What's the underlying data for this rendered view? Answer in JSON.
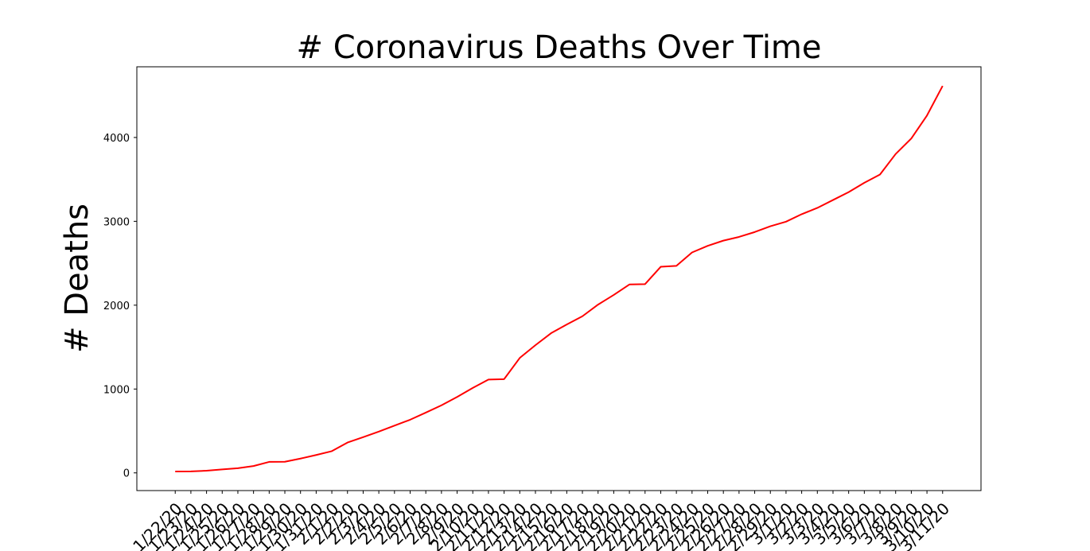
{
  "chart_data": {
    "type": "line",
    "title": "# Coronavirus Deaths Over Time",
    "xlabel": "",
    "ylabel": "# Deaths",
    "line_color": "#ff0000",
    "grid": false,
    "x": [
      "1/22/20",
      "1/23/20",
      "1/24/20",
      "1/25/20",
      "1/26/20",
      "1/27/20",
      "1/28/20",
      "1/29/20",
      "1/30/20",
      "1/31/20",
      "2/1/20",
      "2/2/20",
      "2/3/20",
      "2/4/20",
      "2/5/20",
      "2/6/20",
      "2/7/20",
      "2/8/20",
      "2/9/20",
      "2/10/20",
      "2/11/20",
      "2/12/20",
      "2/13/20",
      "2/14/20",
      "2/15/20",
      "2/16/20",
      "2/17/20",
      "2/18/20",
      "2/19/20",
      "2/20/20",
      "2/21/20",
      "2/22/20",
      "2/23/20",
      "2/24/20",
      "2/25/20",
      "2/26/20",
      "2/27/20",
      "2/28/20",
      "2/29/20",
      "3/1/20",
      "3/2/20",
      "3/3/20",
      "3/4/20",
      "3/5/20",
      "3/6/20",
      "3/7/20",
      "3/8/20",
      "3/9/20",
      "3/10/20",
      "3/11/20"
    ],
    "values": [
      17,
      18,
      26,
      42,
      56,
      82,
      131,
      133,
      171,
      213,
      259,
      362,
      426,
      492,
      564,
      634,
      719,
      806,
      906,
      1013,
      1113,
      1118,
      1371,
      1523,
      1666,
      1770,
      1868,
      2007,
      2122,
      2247,
      2251,
      2458,
      2469,
      2629,
      2708,
      2770,
      2814,
      2872,
      2941,
      2996,
      3085,
      3160,
      3254,
      3348,
      3460,
      3558,
      3803,
      3988,
      4262,
      4615
    ],
    "yticks": [
      0,
      1000,
      2000,
      3000,
      4000
    ],
    "ylim": [
      -211,
      4843
    ]
  }
}
